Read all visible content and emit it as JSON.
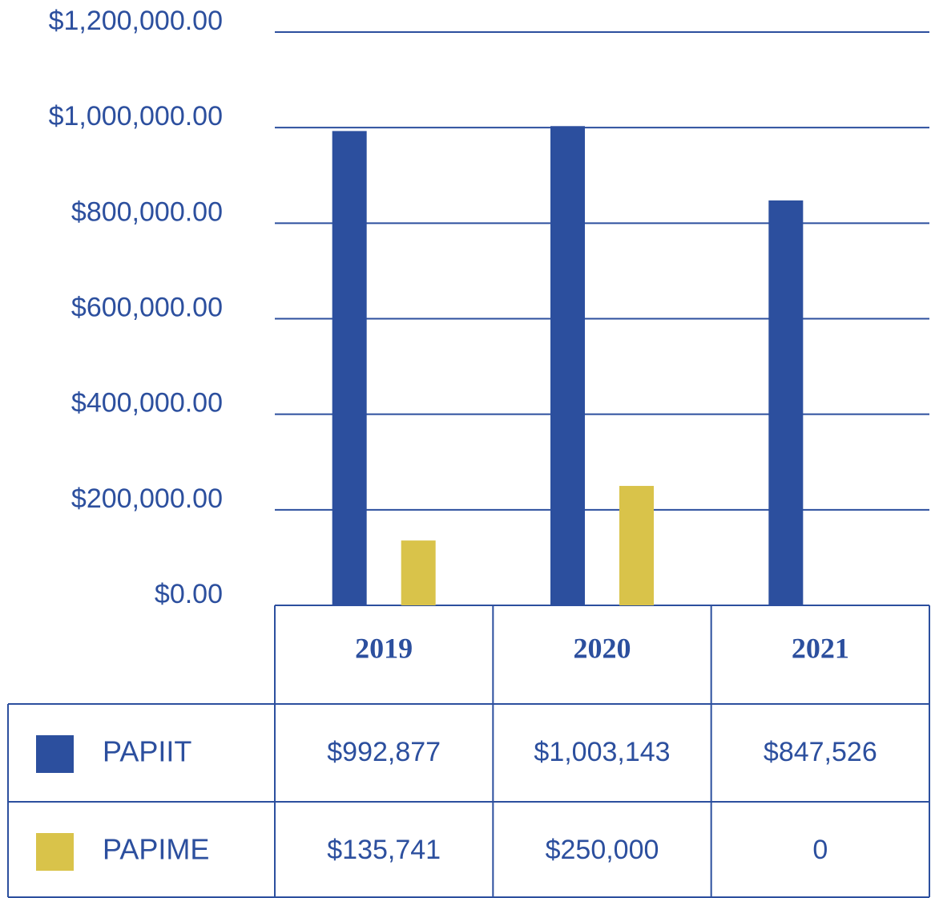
{
  "chart_data": {
    "type": "bar",
    "categories": [
      "2019",
      "2020",
      "2021"
    ],
    "series": [
      {
        "name": "PAPIIT",
        "color": "#2c4f9e",
        "values": [
          992877,
          1003143,
          847526
        ],
        "value_labels": [
          "$992,877",
          "$1,003,143",
          "$847,526"
        ]
      },
      {
        "name": "PAPIME",
        "color": "#d9c34a",
        "values": [
          135741,
          250000,
          0
        ],
        "value_labels": [
          "$135,741",
          "$250,000",
          "0"
        ]
      }
    ],
    "ylim": [
      0,
      1200000
    ],
    "yticks": [
      {
        "value": 0,
        "label": "$0.00"
      },
      {
        "value": 200000,
        "label": "$200,000.00"
      },
      {
        "value": 400000,
        "label": "$400,000.00"
      },
      {
        "value": 600000,
        "label": "$600,000.00"
      },
      {
        "value": 800000,
        "label": "$800,000.00"
      },
      {
        "value": 1000000,
        "label": "$1,000,000.00"
      },
      {
        "value": 1200000,
        "label": "$1,200,000.00"
      }
    ],
    "grid": true
  }
}
